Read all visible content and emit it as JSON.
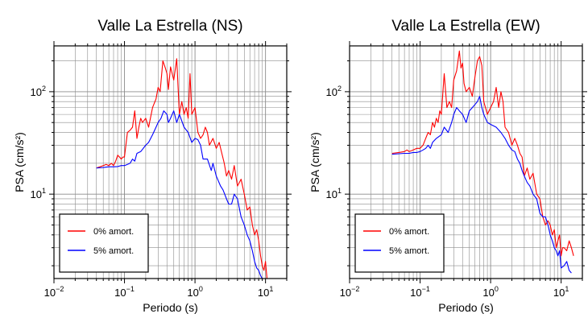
{
  "chart_data": [
    {
      "type": "line",
      "title": "Valle La Estrella (NS)",
      "xlabel": "Periodo (s)",
      "ylabel": "PSA (cm/s²)",
      "xscale": "log",
      "yscale": "log",
      "xlim": [
        0.01,
        20
      ],
      "ylim": [
        1.5,
        280
      ],
      "grid": true,
      "legend_position": "bottom-left",
      "x_tick_labels": [
        {
          "value": 0.01,
          "base": "10",
          "exp": "−2"
        },
        {
          "value": 0.1,
          "base": "10",
          "exp": "−1"
        },
        {
          "value": 1,
          "base": "10",
          "exp": "0"
        },
        {
          "value": 10,
          "base": "10",
          "exp": "1"
        }
      ],
      "y_tick_labels": [
        {
          "value": 10,
          "base": "10",
          "exp": "1"
        },
        {
          "value": 100,
          "base": "10",
          "exp": "2"
        }
      ],
      "series": [
        {
          "name": "0% amort.",
          "color": "#ff0000",
          "points": [
            [
              0.04,
              18
            ],
            [
              0.045,
              18.5
            ],
            [
              0.05,
              19
            ],
            [
              0.055,
              19.5
            ],
            [
              0.06,
              19
            ],
            [
              0.065,
              20
            ],
            [
              0.07,
              19
            ],
            [
              0.075,
              21
            ],
            [
              0.08,
              24
            ],
            [
              0.085,
              23
            ],
            [
              0.09,
              22
            ],
            [
              0.095,
              23
            ],
            [
              0.1,
              23
            ],
            [
              0.11,
              40
            ],
            [
              0.12,
              42
            ],
            [
              0.13,
              45
            ],
            [
              0.14,
              65
            ],
            [
              0.15,
              35
            ],
            [
              0.16,
              45
            ],
            [
              0.17,
              55
            ],
            [
              0.18,
              50
            ],
            [
              0.2,
              55
            ],
            [
              0.22,
              45
            ],
            [
              0.25,
              70
            ],
            [
              0.28,
              85
            ],
            [
              0.3,
              110
            ],
            [
              0.32,
              100
            ],
            [
              0.35,
              200
            ],
            [
              0.38,
              170
            ],
            [
              0.4,
              150
            ],
            [
              0.42,
              105
            ],
            [
              0.45,
              175
            ],
            [
              0.5,
              130
            ],
            [
              0.55,
              210
            ],
            [
              0.6,
              60
            ],
            [
              0.65,
              80
            ],
            [
              0.7,
              60
            ],
            [
              0.75,
              70
            ],
            [
              0.8,
              55
            ],
            [
              0.85,
              150
            ],
            [
              0.9,
              60
            ],
            [
              1.0,
              70
            ],
            [
              1.1,
              40
            ],
            [
              1.2,
              35
            ],
            [
              1.3,
              38
            ],
            [
              1.4,
              45
            ],
            [
              1.5,
              40
            ],
            [
              1.6,
              30
            ],
            [
              1.8,
              35
            ],
            [
              2.0,
              28
            ],
            [
              2.2,
              32
            ],
            [
              2.4,
              25
            ],
            [
              2.6,
              20
            ],
            [
              2.8,
              15
            ],
            [
              3.0,
              17
            ],
            [
              3.3,
              14
            ],
            [
              3.6,
              19
            ],
            [
              4.0,
              12
            ],
            [
              4.5,
              14
            ],
            [
              5.0,
              10
            ],
            [
              5.5,
              7
            ],
            [
              6.0,
              7.5
            ],
            [
              6.5,
              5
            ],
            [
              7.0,
              4
            ],
            [
              7.5,
              4.5
            ],
            [
              8.0,
              3.5
            ],
            [
              8.5,
              2.5
            ],
            [
              9.0,
              2
            ],
            [
              9.5,
              1.8
            ],
            [
              10,
              2.2
            ],
            [
              10.5,
              1.5
            ]
          ]
        },
        {
          "name": "5% amort.",
          "color": "#0000ff",
          "points": [
            [
              0.04,
              18
            ],
            [
              0.05,
              18.2
            ],
            [
              0.06,
              18.5
            ],
            [
              0.07,
              18.5
            ],
            [
              0.08,
              18.6
            ],
            [
              0.09,
              19
            ],
            [
              0.1,
              19
            ],
            [
              0.11,
              19.5
            ],
            [
              0.12,
              20
            ],
            [
              0.13,
              22
            ],
            [
              0.14,
              21
            ],
            [
              0.15,
              25
            ],
            [
              0.17,
              26
            ],
            [
              0.2,
              30
            ],
            [
              0.22,
              32
            ],
            [
              0.25,
              38
            ],
            [
              0.28,
              45
            ],
            [
              0.3,
              50
            ],
            [
              0.33,
              55
            ],
            [
              0.36,
              65
            ],
            [
              0.4,
              60
            ],
            [
              0.42,
              50
            ],
            [
              0.45,
              55
            ],
            [
              0.5,
              65
            ],
            [
              0.55,
              50
            ],
            [
              0.6,
              60
            ],
            [
              0.7,
              45
            ],
            [
              0.8,
              40
            ],
            [
              0.9,
              32
            ],
            [
              1.0,
              35
            ],
            [
              1.1,
              34
            ],
            [
              1.2,
              30
            ],
            [
              1.3,
              22
            ],
            [
              1.5,
              22
            ],
            [
              1.7,
              17
            ],
            [
              1.8,
              20
            ],
            [
              2.0,
              15
            ],
            [
              2.3,
              12
            ],
            [
              2.5,
              11
            ],
            [
              2.8,
              9
            ],
            [
              3.0,
              8
            ],
            [
              3.3,
              8
            ],
            [
              3.6,
              10
            ],
            [
              4.0,
              9
            ],
            [
              4.5,
              6
            ],
            [
              5.0,
              5
            ],
            [
              5.5,
              4
            ],
            [
              6.0,
              3.5
            ],
            [
              6.5,
              2.8
            ],
            [
              7.0,
              2.2
            ],
            [
              7.5,
              1.9
            ],
            [
              8.0,
              1.8
            ],
            [
              8.5,
              1.6
            ],
            [
              9.0,
              1.5
            ]
          ]
        }
      ]
    },
    {
      "type": "line",
      "title": "Valle La Estrella (EW)",
      "xlabel": "Periodo (s)",
      "ylabel": "PSA (cm/s²)",
      "xscale": "log",
      "yscale": "log",
      "xlim": [
        0.01,
        20
      ],
      "ylim": [
        1.5,
        280
      ],
      "grid": true,
      "legend_position": "bottom-left",
      "x_tick_labels": [
        {
          "value": 0.01,
          "base": "10",
          "exp": "−2"
        },
        {
          "value": 0.1,
          "base": "10",
          "exp": "−1"
        },
        {
          "value": 1,
          "base": "10",
          "exp": "0"
        },
        {
          "value": 10,
          "base": "10",
          "exp": "1"
        }
      ],
      "y_tick_labels": [
        {
          "value": 10,
          "base": "10",
          "exp": "1"
        },
        {
          "value": 100,
          "base": "10",
          "exp": "2"
        }
      ],
      "series": [
        {
          "name": "0% amort.",
          "color": "#ff0000",
          "points": [
            [
              0.04,
              25
            ],
            [
              0.05,
              25.5
            ],
            [
              0.06,
              26
            ],
            [
              0.065,
              27
            ],
            [
              0.07,
              26
            ],
            [
              0.08,
              27
            ],
            [
              0.09,
              28
            ],
            [
              0.1,
              28
            ],
            [
              0.11,
              30
            ],
            [
              0.12,
              35
            ],
            [
              0.13,
              40
            ],
            [
              0.14,
              38
            ],
            [
              0.15,
              50
            ],
            [
              0.16,
              45
            ],
            [
              0.17,
              55
            ],
            [
              0.18,
              50
            ],
            [
              0.19,
              65
            ],
            [
              0.2,
              60
            ],
            [
              0.22,
              150
            ],
            [
              0.24,
              70
            ],
            [
              0.26,
              80
            ],
            [
              0.28,
              70
            ],
            [
              0.3,
              130
            ],
            [
              0.33,
              160
            ],
            [
              0.36,
              250
            ],
            [
              0.38,
              170
            ],
            [
              0.4,
              190
            ],
            [
              0.42,
              120
            ],
            [
              0.45,
              100
            ],
            [
              0.5,
              110
            ],
            [
              0.55,
              90
            ],
            [
              0.6,
              140
            ],
            [
              0.65,
              200
            ],
            [
              0.7,
              220
            ],
            [
              0.75,
              180
            ],
            [
              0.8,
              80
            ],
            [
              0.9,
              60
            ],
            [
              1.0,
              70
            ],
            [
              1.1,
              80
            ],
            [
              1.2,
              110
            ],
            [
              1.3,
              70
            ],
            [
              1.4,
              100
            ],
            [
              1.5,
              80
            ],
            [
              1.6,
              45
            ],
            [
              1.8,
              40
            ],
            [
              2.0,
              30
            ],
            [
              2.2,
              35
            ],
            [
              2.4,
              30
            ],
            [
              2.6,
              25
            ],
            [
              2.8,
              23
            ],
            [
              3.0,
              15
            ],
            [
              3.3,
              18
            ],
            [
              3.6,
              14
            ],
            [
              4.0,
              16
            ],
            [
              4.5,
              10
            ],
            [
              5.0,
              9
            ],
            [
              5.5,
              6
            ],
            [
              6.0,
              5
            ],
            [
              6.5,
              5.5
            ],
            [
              7.0,
              5
            ],
            [
              7.5,
              4
            ],
            [
              8.0,
              4.5
            ],
            [
              8.5,
              3
            ],
            [
              9.0,
              3.5
            ],
            [
              9.5,
              4
            ],
            [
              10,
              2.5
            ],
            [
              10.5,
              3
            ],
            [
              11,
              3
            ],
            [
              12,
              2.8
            ],
            [
              13,
              3.5
            ],
            [
              14,
              3
            ],
            [
              15,
              2.5
            ]
          ]
        },
        {
          "name": "5% amort.",
          "color": "#0000ff",
          "points": [
            [
              0.04,
              24.5
            ],
            [
              0.05,
              24.8
            ],
            [
              0.06,
              25
            ],
            [
              0.07,
              25
            ],
            [
              0.08,
              25.5
            ],
            [
              0.09,
              25.5
            ],
            [
              0.1,
              26
            ],
            [
              0.11,
              27
            ],
            [
              0.12,
              28
            ],
            [
              0.13,
              30
            ],
            [
              0.14,
              28
            ],
            [
              0.15,
              32
            ],
            [
              0.17,
              35
            ],
            [
              0.2,
              38
            ],
            [
              0.22,
              45
            ],
            [
              0.25,
              40
            ],
            [
              0.28,
              50
            ],
            [
              0.3,
              60
            ],
            [
              0.33,
              70
            ],
            [
              0.36,
              65
            ],
            [
              0.4,
              60
            ],
            [
              0.45,
              50
            ],
            [
              0.5,
              65
            ],
            [
              0.55,
              70
            ],
            [
              0.6,
              75
            ],
            [
              0.65,
              80
            ],
            [
              0.7,
              90
            ],
            [
              0.75,
              70
            ],
            [
              0.8,
              60
            ],
            [
              0.9,
              50
            ],
            [
              1.0,
              48
            ],
            [
              1.2,
              45
            ],
            [
              1.4,
              40
            ],
            [
              1.6,
              35
            ],
            [
              1.8,
              30
            ],
            [
              2.0,
              27
            ],
            [
              2.2,
              26
            ],
            [
              2.4,
              22
            ],
            [
              2.6,
              20
            ],
            [
              2.8,
              17
            ],
            [
              3.0,
              15
            ],
            [
              3.3,
              13
            ],
            [
              3.6,
              12
            ],
            [
              4.0,
              10
            ],
            [
              4.5,
              9
            ],
            [
              5.0,
              6.5
            ],
            [
              5.5,
              6
            ],
            [
              6.0,
              6
            ],
            [
              6.5,
              5
            ],
            [
              7.0,
              4
            ],
            [
              7.5,
              3.5
            ],
            [
              8.0,
              3
            ],
            [
              8.5,
              2.8
            ],
            [
              9.0,
              2.5
            ],
            [
              9.5,
              2.8
            ],
            [
              10,
              1.9
            ],
            [
              11,
              2
            ],
            [
              12,
              2.2
            ],
            [
              13,
              1.8
            ],
            [
              14,
              1.7
            ]
          ]
        }
      ]
    }
  ]
}
